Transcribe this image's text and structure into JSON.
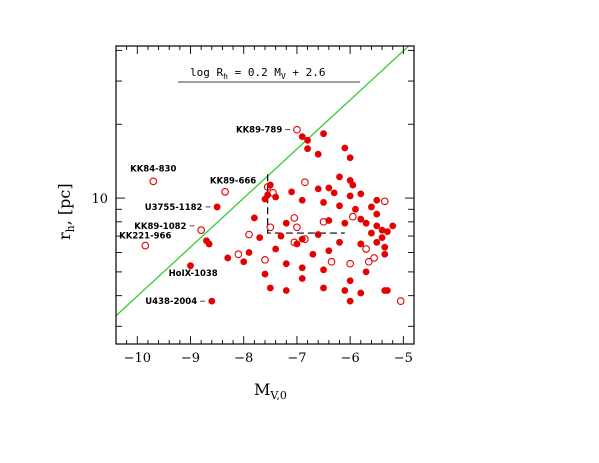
{
  "chart_data": {
    "type": "scatter",
    "xlabel_main": "M",
    "xlabel_sub": "V,0",
    "ylabel_main": "r",
    "ylabel_sub": "h",
    "ylabel_rest": ", [pc]",
    "xlim": [
      -10.4,
      -4.8
    ],
    "ylim_log": [
      0.405,
      1.62
    ],
    "y_scale": "log",
    "x_ticks": [
      -10,
      -9,
      -8,
      -7,
      -6,
      -5
    ],
    "x_tick_labels": [
      "−10",
      "−9",
      "−8",
      "−7",
      "−6",
      "−5"
    ],
    "y_tick_labels": [
      {
        "value": 10,
        "label": "10"
      }
    ],
    "relation": {
      "text": "log R",
      "sub": "h",
      "rest": " = 0.2 M",
      "sub2": "V",
      "rest2": " + 2.6",
      "slope": 0.2,
      "intercept": 2.6,
      "color": "#33cc33"
    },
    "marker_color": "#e60000",
    "filled": [
      [
        -7.5,
        11.3
      ],
      [
        -6.9,
        17.8
      ],
      [
        -6.8,
        17.2
      ],
      [
        -6.5,
        18.3
      ],
      [
        -6.8,
        15.9
      ],
      [
        -6.6,
        15.1
      ],
      [
        -6.1,
        16.0
      ],
      [
        -6.0,
        14.6
      ],
      [
        -6.2,
        12.2
      ],
      [
        -6.0,
        11.8
      ],
      [
        -5.95,
        11.3
      ],
      [
        -6.4,
        11.0
      ],
      [
        -6.6,
        10.9
      ],
      [
        -7.1,
        10.6
      ],
      [
        -6.3,
        10.5
      ],
      [
        -6.0,
        10.2
      ],
      [
        -5.8,
        10.4
      ],
      [
        -7.55,
        10.3
      ],
      [
        -7.4,
        10.1
      ],
      [
        -7.6,
        9.9
      ],
      [
        -6.9,
        9.8
      ],
      [
        -6.5,
        9.6
      ],
      [
        -6.2,
        9.3
      ],
      [
        -5.9,
        9.0
      ],
      [
        -5.5,
        9.8
      ],
      [
        -5.6,
        9.2
      ],
      [
        -5.5,
        8.6
      ],
      [
        -7.8,
        8.3
      ],
      [
        -7.2,
        7.9
      ],
      [
        -6.4,
        8.1
      ],
      [
        -6.1,
        7.9
      ],
      [
        -5.8,
        8.2
      ],
      [
        -5.7,
        7.9
      ],
      [
        -5.5,
        7.7
      ],
      [
        -5.4,
        7.4
      ],
      [
        -5.2,
        7.7
      ],
      [
        -7.7,
        6.9
      ],
      [
        -7.3,
        7.0
      ],
      [
        -6.9,
        6.8
      ],
      [
        -6.6,
        7.1
      ],
      [
        -5.6,
        7.2
      ],
      [
        -5.4,
        6.9
      ],
      [
        -5.3,
        7.3
      ],
      [
        -7.0,
        6.5
      ],
      [
        -6.2,
        6.6
      ],
      [
        -5.8,
        6.5
      ],
      [
        -5.5,
        6.6
      ],
      [
        -5.35,
        6.3
      ],
      [
        -7.9,
        6.0
      ],
      [
        -7.4,
        6.2
      ],
      [
        -6.7,
        5.9
      ],
      [
        -6.4,
        6.1
      ],
      [
        -5.35,
        5.9
      ],
      [
        -8.3,
        5.7
      ],
      [
        -8.0,
        5.5
      ],
      [
        -7.2,
        5.4
      ],
      [
        -6.9,
        5.2
      ],
      [
        -6.5,
        5.1
      ],
      [
        -5.7,
        5.0
      ],
      [
        -7.6,
        4.9
      ],
      [
        -6.9,
        4.7
      ],
      [
        -6.0,
        4.6
      ],
      [
        -8.7,
        6.7
      ],
      [
        -8.65,
        6.5
      ],
      [
        -8.5,
        9.2
      ],
      [
        -9.0,
        5.3
      ],
      [
        -7.5,
        4.3
      ],
      [
        -7.2,
        4.2
      ],
      [
        -6.5,
        4.3
      ],
      [
        -6.1,
        4.2
      ],
      [
        -5.8,
        4.1
      ],
      [
        -5.35,
        4.2
      ],
      [
        -5.3,
        4.2
      ],
      [
        -8.6,
        3.8
      ],
      [
        -6.0,
        3.8
      ]
    ],
    "open": [
      [
        -7.0,
        19.0
      ],
      [
        -9.7,
        11.7
      ],
      [
        -8.35,
        10.6
      ],
      [
        -7.55,
        11.1
      ],
      [
        -7.45,
        10.5
      ],
      [
        -6.85,
        11.6
      ],
      [
        -5.95,
        8.4
      ],
      [
        -7.05,
        8.3
      ],
      [
        -6.5,
        8.0
      ],
      [
        -7.9,
        7.1
      ],
      [
        -7.0,
        7.6
      ],
      [
        -6.85,
        6.8
      ],
      [
        -7.05,
        6.6
      ],
      [
        -9.85,
        6.4
      ],
      [
        -8.1,
        5.9
      ],
      [
        -7.6,
        5.6
      ],
      [
        -6.35,
        5.5
      ],
      [
        -5.55,
        5.7
      ],
      [
        -5.7,
        6.2
      ],
      [
        -5.65,
        5.5
      ],
      [
        -6.0,
        5.4
      ],
      [
        -5.05,
        3.8
      ],
      [
        -5.35,
        9.7
      ],
      [
        -8.8,
        7.4
      ],
      [
        -7.5,
        7.6
      ]
    ],
    "dashed_box": {
      "x": [
        -7.55,
        -6.1
      ],
      "y": [
        7.2,
        12.5
      ]
    },
    "annotations": [
      {
        "text": "KK89-789",
        "x": -7.05,
        "y": 19.0,
        "anchor": "end",
        "leader": true
      },
      {
        "text": "KK84-830",
        "x": -9.7,
        "y": 13.2,
        "anchor": "middle",
        "leader": false
      },
      {
        "text": "KK89-666",
        "x": -8.2,
        "y": 11.8,
        "anchor": "middle",
        "leader": false
      },
      {
        "text": "U3755-1182",
        "x": -8.55,
        "y": 9.2,
        "anchor": "end",
        "leader": true
      },
      {
        "text": "KK89-1082",
        "x": -8.85,
        "y": 7.7,
        "anchor": "end",
        "leader": true
      },
      {
        "text": "KK221-966",
        "x": -9.85,
        "y": 7.05,
        "anchor": "middle",
        "leader": false
      },
      {
        "text": "HoIX-1038",
        "x": -8.95,
        "y": 4.95,
        "anchor": "middle",
        "leader": true
      },
      {
        "text": "U438-2004",
        "x": -8.65,
        "y": 3.8,
        "anchor": "end",
        "leader": true
      }
    ]
  }
}
